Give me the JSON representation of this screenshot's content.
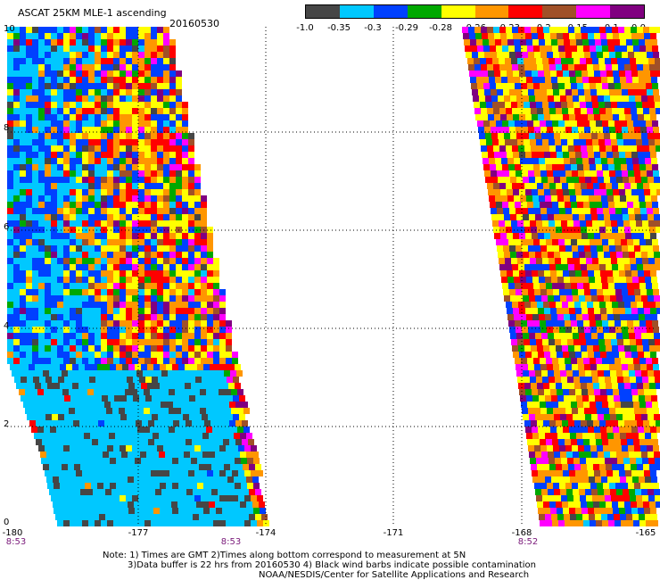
{
  "title": "ASCAT 25KM MLE-1 ascending",
  "date": "20160530",
  "colorbar": {
    "colors": [
      "#464646",
      "#00c8ff",
      "#0040ff",
      "#00a800",
      "#ffff00",
      "#ff9600",
      "#ff0000",
      "#a05028",
      "#ff00ff",
      "#800080"
    ],
    "labels": [
      "-1.0",
      "-0.35",
      "-0.3",
      "-0.29",
      "-0.28",
      "-0.26",
      "-0.23",
      "-0.2",
      "-0.15",
      "-0.1",
      "0.0"
    ]
  },
  "axes": {
    "y_ticks": [
      "10",
      "8",
      "6",
      "4",
      "2",
      "0"
    ],
    "x_ticks": [
      "-180",
      "-177",
      "-174",
      "-171",
      "-168",
      "-165"
    ]
  },
  "pass_times": [
    "8:53",
    "8:53",
    "8:52"
  ],
  "notes": {
    "line1": "Note: 1) Times are GMT 2)Times along bottom correspond to measurement at 5N",
    "line2": "3)Data buffer is 22 hrs from 20160530 4) Black wind barbs indicate possible contamination",
    "line3": "NOAA/NESDIS/Center for Satellite Applications and Research"
  }
}
